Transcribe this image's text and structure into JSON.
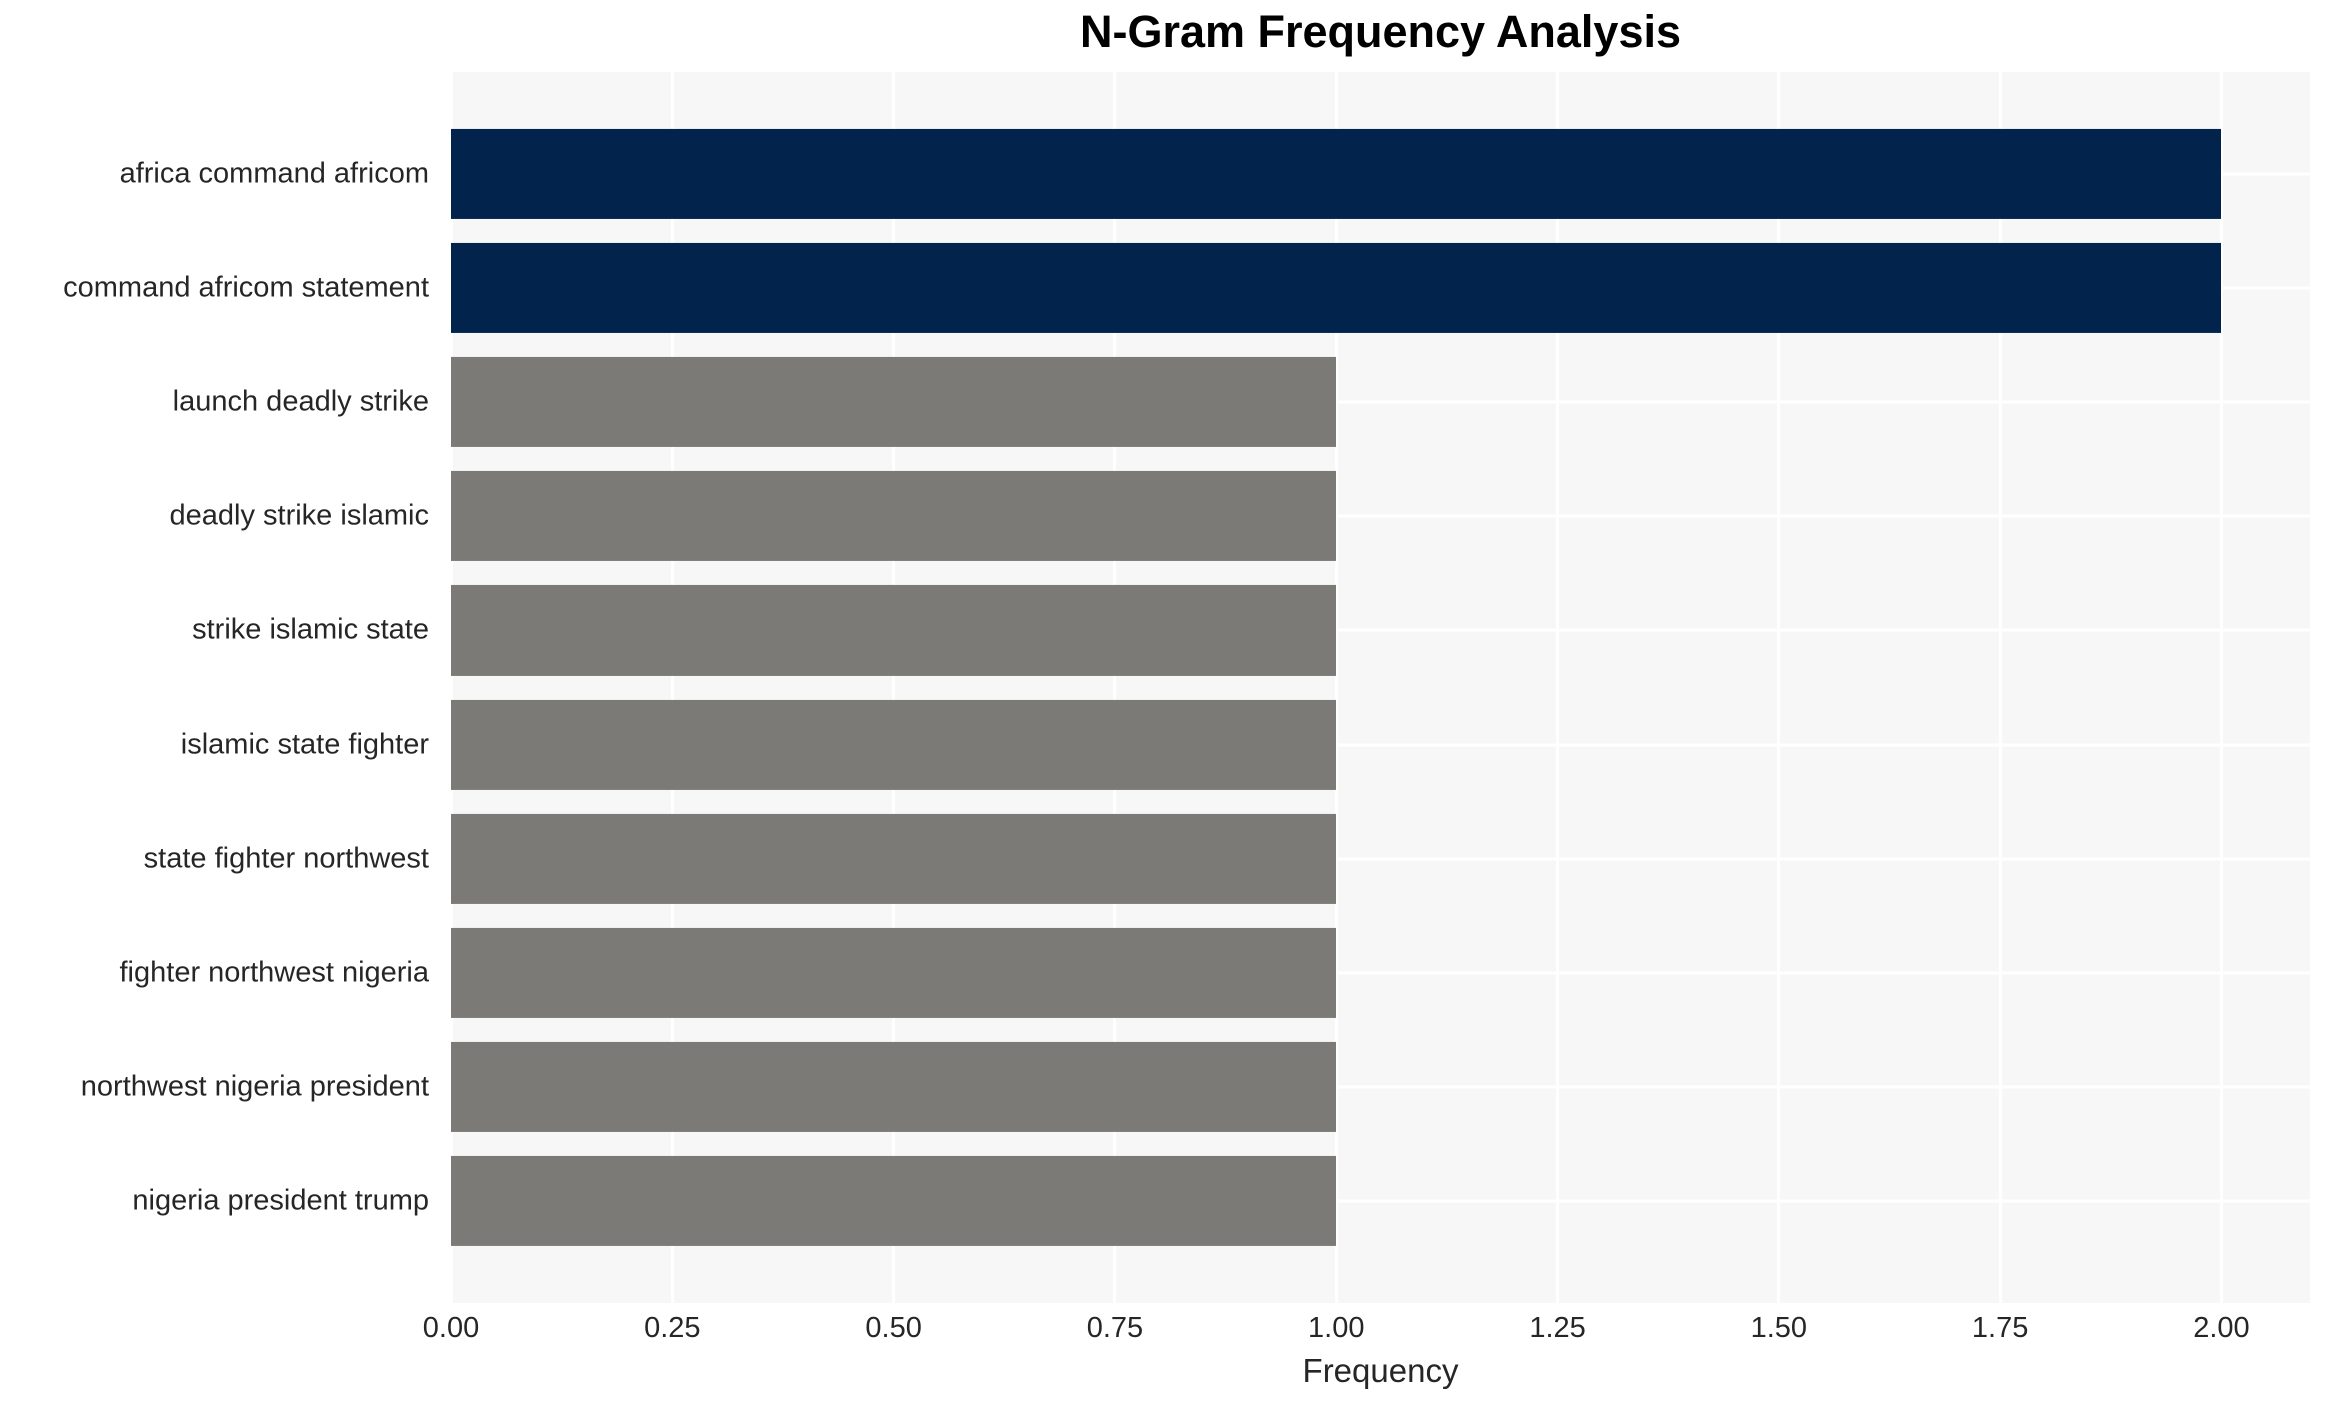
{
  "chart_data": {
    "type": "bar",
    "orientation": "horizontal",
    "title": "N-Gram Frequency Analysis",
    "xlabel": "Frequency",
    "ylabel": "",
    "categories": [
      "africa command africom",
      "command africom statement",
      "launch deadly strike",
      "deadly strike islamic",
      "strike islamic state",
      "islamic state fighter",
      "state fighter northwest",
      "fighter northwest nigeria",
      "northwest nigeria president",
      "nigeria president trump"
    ],
    "values": [
      2,
      2,
      1,
      1,
      1,
      1,
      1,
      1,
      1,
      1
    ],
    "bar_colors": [
      "#02234C",
      "#02234C",
      "#7B7A77",
      "#7B7A77",
      "#7B7A77",
      "#7B7A77",
      "#7B7A77",
      "#7B7A77",
      "#7B7A77",
      "#7B7A77"
    ],
    "xlim": [
      0,
      2.1
    ],
    "xticks": [
      0,
      0.25,
      0.5,
      0.75,
      1.0,
      1.25,
      1.5,
      1.75,
      2.0
    ],
    "xtick_labels": [
      "0.00",
      "0.25",
      "0.50",
      "0.75",
      "1.00",
      "1.25",
      "1.50",
      "1.75",
      "2.00"
    ],
    "grid": true,
    "legend": "none",
    "colors": {
      "highlight_bar": "#02234C",
      "default_bar": "#7B7A77",
      "plot_background": "#F7F7F7",
      "gridline": "#FFFFFF",
      "tick_text": "#262626",
      "title_text": "#000000"
    }
  }
}
